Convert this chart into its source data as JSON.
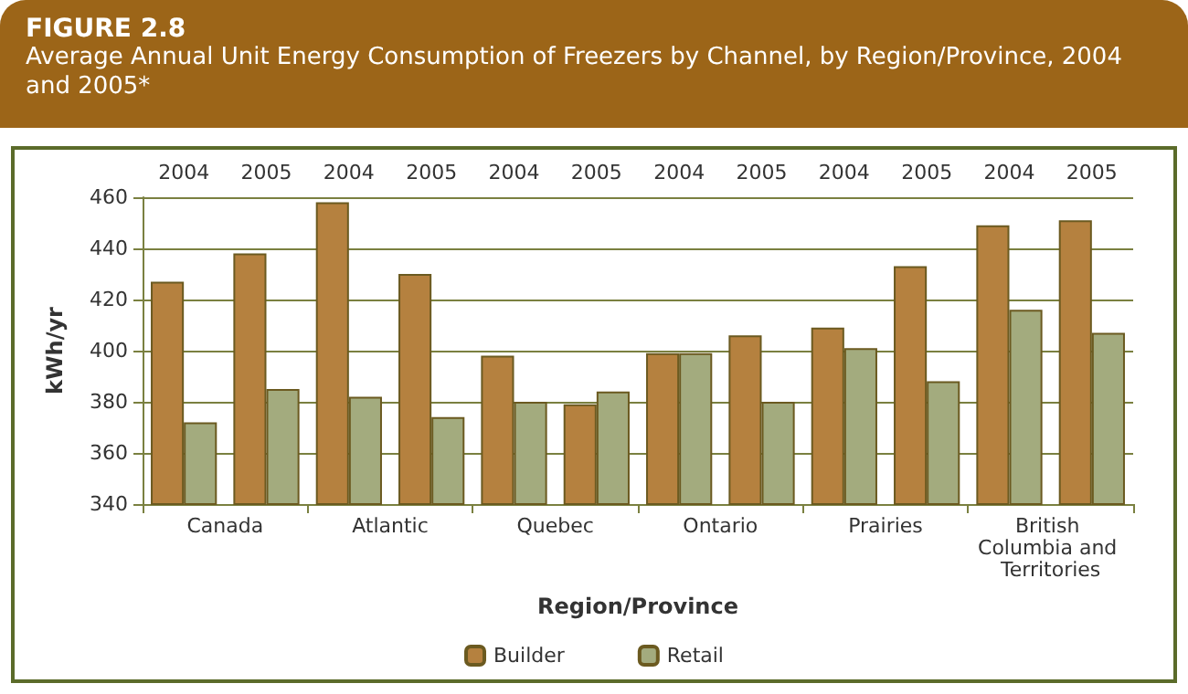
{
  "chart_data": {
    "type": "bar",
    "title": "FIGURE 2.8",
    "subtitle": "Average Annual Unit Energy Consumption of Freezers by Channel, by Region/Province, 2004 and 2005*",
    "xlabel": "Region/Province",
    "ylabel": "kWh/yr",
    "categories": [
      "2004",
      "2005",
      "2004",
      "2005",
      "2004",
      "2005",
      "2004",
      "2005",
      "2004",
      "2005",
      "2004",
      "2005"
    ],
    "annotations": [
      "Canada",
      "Atlantic",
      "Quebec",
      "Ontario",
      "Prairies",
      "British Columbia and Territories"
    ],
    "series": [
      {
        "name": "Builder",
        "color": "#b5813f",
        "values": [
          427,
          438,
          458,
          430,
          398,
          379,
          399,
          406,
          409,
          433,
          449,
          451
        ]
      },
      {
        "name": "Retail",
        "color": "#a3ab7e",
        "values": [
          372,
          385,
          382,
          374,
          380,
          384,
          399,
          380,
          401,
          388,
          416,
          407
        ]
      }
    ],
    "ylim": [
      340,
      460
    ],
    "yticks": [
      340,
      360,
      380,
      400,
      420,
      440,
      460
    ],
    "grid": "y",
    "legend": "bottom"
  }
}
